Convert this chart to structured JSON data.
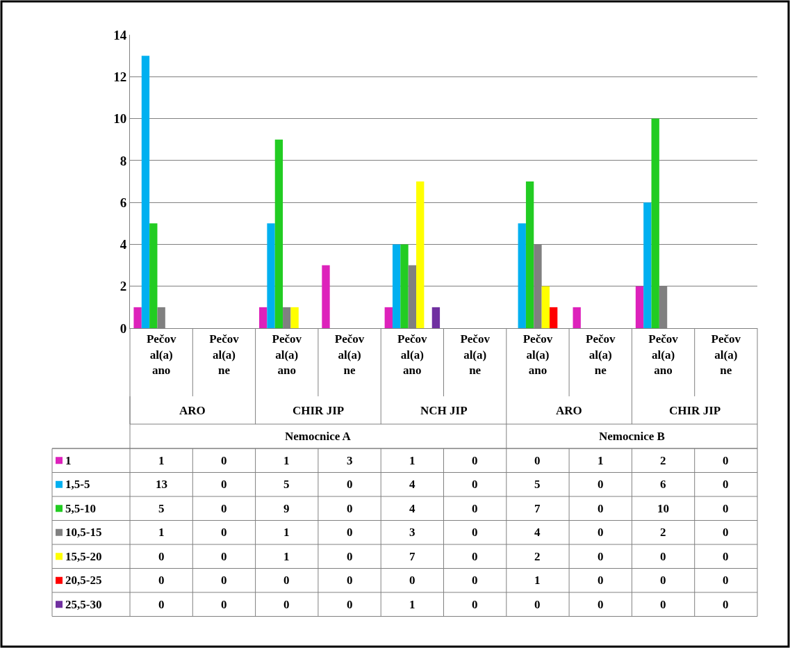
{
  "chart_data": {
    "type": "bar",
    "categories": [
      "Pečoval(a) ano",
      "Pečoval(a) ne",
      "Pečoval(a) ano",
      "Pečoval(a) ne",
      "Pečoval(a) ano",
      "Pečoval(a) ne",
      "Pečoval(a) ano",
      "Pečoval(a) ne",
      "Pečoval(a) ano",
      "Pečoval(a) ne"
    ],
    "annotations": [
      "ARO",
      "CHIR JIP",
      "NCH JIP",
      "ARO",
      "CHIR JIP",
      "Nemocnice A",
      "Nemocnice B"
    ],
    "series": [
      {
        "name": "1",
        "color": "#dd22bb",
        "values": [
          1,
          0,
          1,
          3,
          1,
          0,
          0,
          1,
          2,
          0
        ]
      },
      {
        "name": "1,5-5",
        "color": "#00b0f0",
        "values": [
          13,
          0,
          5,
          0,
          4,
          0,
          5,
          0,
          6,
          0
        ]
      },
      {
        "name": "5,5-10",
        "color": "#22cc22",
        "values": [
          5,
          0,
          9,
          0,
          4,
          0,
          7,
          0,
          10,
          0
        ]
      },
      {
        "name": "10,5-15",
        "color": "#808080",
        "values": [
          1,
          0,
          1,
          0,
          3,
          0,
          4,
          0,
          2,
          0
        ]
      },
      {
        "name": "15,5-20",
        "color": "#ffff00",
        "values": [
          0,
          0,
          1,
          0,
          7,
          0,
          2,
          0,
          0,
          0
        ]
      },
      {
        "name": "20,5-25",
        "color": "#ff0000",
        "values": [
          0,
          0,
          0,
          0,
          0,
          0,
          1,
          0,
          0,
          0
        ]
      },
      {
        "name": "25,5-30",
        "color": "#7030a0",
        "values": [
          0,
          0,
          0,
          0,
          1,
          0,
          0,
          0,
          0,
          0
        ]
      }
    ],
    "ylim": [
      0,
      14
    ],
    "yticks": [
      0,
      2,
      4,
      6,
      8,
      10,
      12,
      14
    ],
    "grid": "y",
    "legend": "bottom",
    "data_labels": true
  }
}
